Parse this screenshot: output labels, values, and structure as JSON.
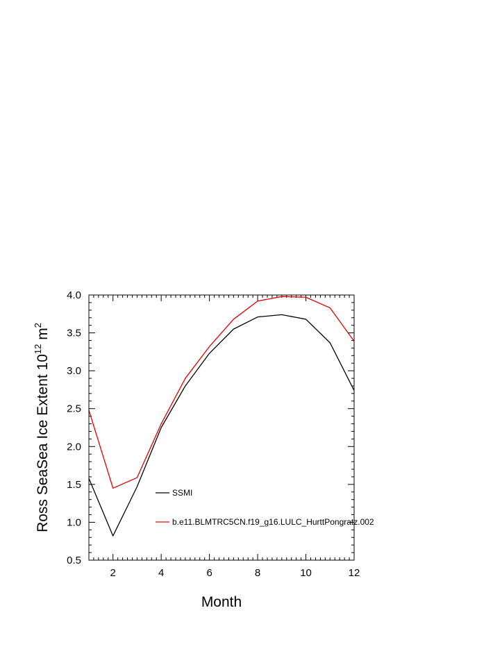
{
  "chart_data": {
    "type": "line",
    "title": "",
    "xlabel": "Month",
    "ylabel": {
      "main": "Ross SeaSea Ice Extent 10",
      "sup": "12",
      "tail": " m",
      "sup2": "2"
    },
    "xlim": [
      1,
      12
    ],
    "ylim": [
      0.5,
      4.0
    ],
    "xticks": [
      2,
      4,
      6,
      8,
      10,
      12
    ],
    "yticks": [
      0.5,
      1.0,
      1.5,
      2.0,
      2.5,
      3.0,
      3.5,
      4.0
    ],
    "ytick_labels": [
      "0.5",
      "1.0",
      "1.5",
      "2.0",
      "2.5",
      "3.0",
      "3.5",
      "4.0"
    ],
    "grid": false,
    "legend_position": "inside-lower-center",
    "x": [
      1,
      2,
      3,
      4,
      5,
      6,
      7,
      8,
      9,
      10,
      11,
      12
    ],
    "series": [
      {
        "name": "SSMI",
        "color": "#000000",
        "values": [
          1.58,
          0.82,
          1.47,
          2.25,
          2.8,
          3.23,
          3.55,
          3.71,
          3.74,
          3.68,
          3.37,
          2.74
        ]
      },
      {
        "name": "b.e11.BLMTRC5CN.f19_g16.LULC_HurttPongratz.002",
        "color": "#e00000",
        "values": [
          2.48,
          1.45,
          1.59,
          2.3,
          2.9,
          3.32,
          3.68,
          3.92,
          3.98,
          3.97,
          3.83,
          3.39
        ]
      }
    ]
  }
}
